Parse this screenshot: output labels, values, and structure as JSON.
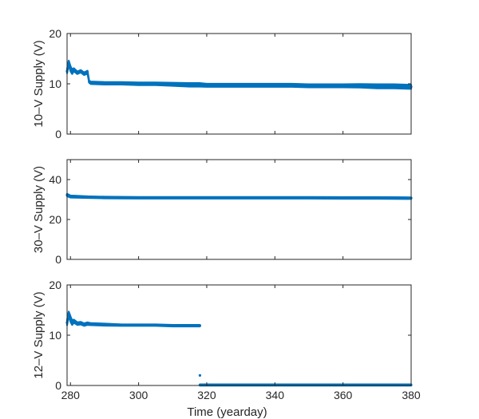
{
  "chart_data": [
    {
      "type": "scatter",
      "ylabel": "10–V Supply (V)",
      "xlabel": "",
      "xlim": [
        279,
        380
      ],
      "ylim": [
        0,
        20
      ],
      "yticks": [
        0,
        10,
        20
      ],
      "ytick_labels": [
        "0",
        "10",
        "20"
      ],
      "xticks": [
        280,
        300,
        320,
        340,
        360,
        380
      ],
      "xtick_labels": [],
      "color": "#0072BD",
      "series": [
        {
          "x": [
            279.0,
            279.5,
            280.0,
            280.5,
            281.0,
            282.0,
            283.0,
            284.0,
            285.0,
            285.5,
            286.0,
            290.0,
            295.0,
            300.0,
            305.0,
            310.0,
            315.0,
            318.0,
            320.0,
            325.0,
            330.0,
            335.0,
            340.0,
            345.0,
            350.0,
            355.0,
            360.0,
            365.0,
            370.0,
            375.0,
            380.0
          ],
          "y": [
            12.5,
            14.2,
            13.0,
            12.4,
            12.8,
            12.2,
            12.5,
            12.0,
            12.3,
            10.4,
            10.2,
            10.1,
            10.1,
            10.0,
            10.0,
            9.9,
            9.8,
            9.8,
            9.7,
            9.7,
            9.7,
            9.7,
            9.7,
            9.7,
            9.6,
            9.6,
            9.6,
            9.6,
            9.5,
            9.5,
            9.4
          ],
          "spread": [
            0.8,
            0.8,
            1.0,
            0.9,
            0.6,
            0.5,
            0.5,
            0.5,
            0.6,
            0.4,
            0.5,
            0.5,
            0.5,
            0.5,
            0.5,
            0.6,
            0.7,
            0.7,
            0.6,
            0.6,
            0.6,
            0.6,
            0.6,
            0.6,
            0.6,
            0.6,
            0.6,
            0.7,
            0.8,
            0.8,
            0.8
          ]
        }
      ]
    },
    {
      "type": "scatter",
      "ylabel": "30–V Supply (V)",
      "xlabel": "",
      "xlim": [
        279,
        380
      ],
      "ylim": [
        0,
        50
      ],
      "yticks": [
        0,
        20,
        40
      ],
      "ytick_labels": [
        "0",
        "20",
        "40"
      ],
      "xticks": [
        280,
        300,
        320,
        340,
        360,
        380
      ],
      "xtick_labels": [],
      "color": "#0072BD",
      "series": [
        {
          "x": [
            279.0,
            280.0,
            285.0,
            290.0,
            300.0,
            310.0,
            320.0,
            330.0,
            340.0,
            350.0,
            360.0,
            370.0,
            380.0
          ],
          "y": [
            32.3,
            31.5,
            31.2,
            31.0,
            30.9,
            30.9,
            30.9,
            30.9,
            30.9,
            30.9,
            30.8,
            30.8,
            30.7
          ],
          "spread": [
            1.2,
            1.0,
            0.8,
            0.8,
            0.8,
            0.8,
            0.8,
            0.8,
            0.8,
            0.8,
            0.8,
            0.8,
            0.8
          ]
        }
      ]
    },
    {
      "type": "scatter",
      "ylabel": "12–V Supply (V)",
      "xlabel": "Time (yearday)",
      "xlim": [
        279,
        380
      ],
      "ylim": [
        0,
        20
      ],
      "yticks": [
        0,
        10,
        20
      ],
      "ytick_labels": [
        "0",
        "10",
        "20"
      ],
      "xticks": [
        280,
        300,
        320,
        340,
        360,
        380
      ],
      "xtick_labels": [
        "280",
        "300",
        "320",
        "340",
        "360",
        "380"
      ],
      "color": "#0072BD",
      "series": [
        {
          "x": [
            279.0,
            279.5,
            280.0,
            280.5,
            281.0,
            282.0,
            283.0,
            284.0,
            285.0,
            286.0,
            290.0,
            295.0,
            300.0,
            305.0,
            310.0,
            315.0,
            318.0
          ],
          "y": [
            12.5,
            14.3,
            13.2,
            12.5,
            12.8,
            12.3,
            12.4,
            12.1,
            12.3,
            12.2,
            12.1,
            12.0,
            12.0,
            12.0,
            11.9,
            11.9,
            11.9
          ],
          "spread": [
            1.0,
            0.8,
            1.1,
            0.9,
            0.6,
            0.5,
            0.5,
            0.5,
            0.5,
            0.4,
            0.4,
            0.3,
            0.3,
            0.3,
            0.3,
            0.3,
            0.3
          ]
        },
        {
          "x": [
            318.0,
            320.0,
            330.0,
            340.0,
            350.0,
            360.0,
            370.0,
            380.0
          ],
          "y": [
            0.1,
            0.1,
            0.1,
            0.1,
            0.1,
            0.1,
            0.1,
            0.1
          ],
          "spread": [
            0.25,
            0.25,
            0.25,
            0.25,
            0.25,
            0.25,
            0.25,
            0.25
          ]
        }
      ],
      "points": [
        {
          "x": 318.0,
          "y": 2.0
        }
      ]
    }
  ]
}
